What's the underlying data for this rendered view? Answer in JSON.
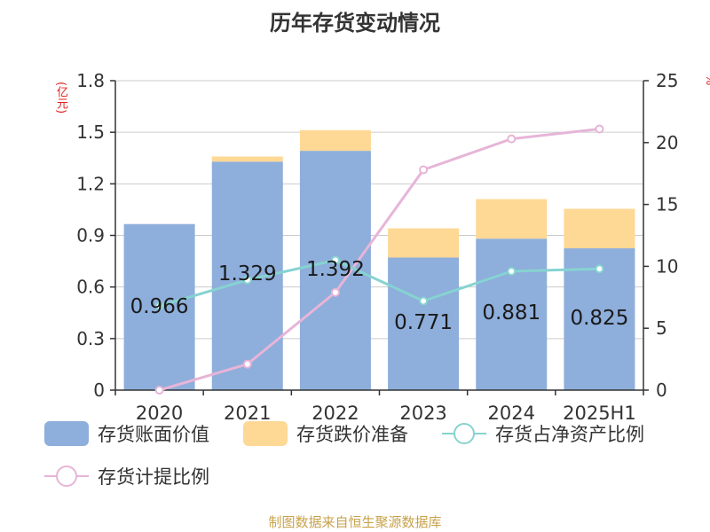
{
  "title": "历年存货变动情况",
  "unit_left": "(亿元)",
  "unit_right": "%",
  "source": "制图数据来自恒生聚源数据库",
  "colors": {
    "book_value": "#8eaedb",
    "impairment": "#fed895",
    "ratio_net_assets": "#86d3d1",
    "provision_ratio": "#e6b5d8",
    "axis": "#333333",
    "grid": "#cccccc"
  },
  "legend": [
    {
      "label": "存货账面价值",
      "kind": "bar",
      "color": "#8eaedb"
    },
    {
      "label": "存货跌价准备",
      "kind": "bar",
      "color": "#fed895"
    },
    {
      "label": "存货占净资产比例",
      "kind": "line",
      "color": "#86d3d1"
    },
    {
      "label": "存货计提比例",
      "kind": "line",
      "color": "#e6b5d8"
    }
  ],
  "chart_data": {
    "type": "bar",
    "categories": [
      "2020",
      "2021",
      "2022",
      "2023",
      "2024",
      "2025H1"
    ],
    "ylim": [
      0,
      1.8
    ],
    "yticks": [
      0,
      0.3,
      0.6,
      0.9,
      1.2,
      1.5,
      1.8
    ],
    "y2lim": [
      0,
      25
    ],
    "y2ticks": [
      0,
      5,
      10,
      15,
      20,
      25
    ],
    "grid": true,
    "legend_position": "bottom",
    "series": [
      {
        "name": "存货账面价值",
        "type": "bar",
        "stack": "inv",
        "axis": "left",
        "values": [
          0.966,
          1.329,
          1.392,
          0.771,
          0.881,
          0.825
        ],
        "labels": [
          "0.966",
          "1.329",
          "1.392",
          "0.771",
          "0.881",
          "0.825"
        ]
      },
      {
        "name": "存货跌价准备",
        "type": "bar",
        "stack": "inv",
        "axis": "left",
        "values": [
          0.0,
          0.03,
          0.12,
          0.17,
          0.23,
          0.23
        ]
      },
      {
        "name": "存货占净资产比例",
        "type": "line",
        "axis": "right",
        "values": [
          6.8,
          8.9,
          10.5,
          7.2,
          9.6,
          9.8
        ]
      },
      {
        "name": "存货计提比例",
        "type": "line",
        "axis": "right",
        "values": [
          0.0,
          2.1,
          7.9,
          17.8,
          20.3,
          21.1
        ]
      }
    ]
  }
}
